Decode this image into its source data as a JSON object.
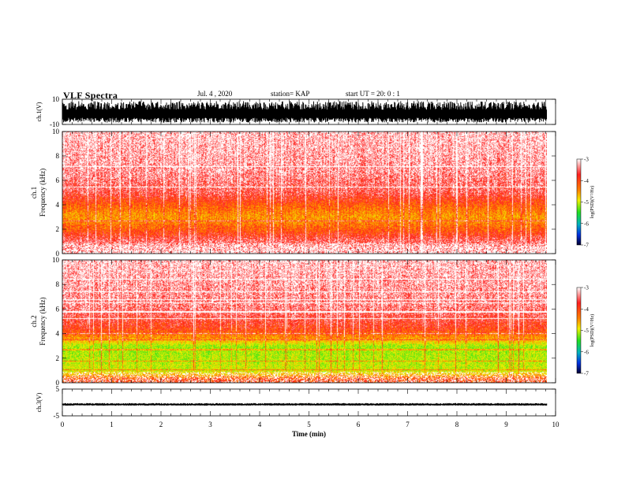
{
  "header": {
    "title": "VLF Spectra",
    "date": "Jul. 4 , 2020",
    "station": "station= KAP",
    "start": "start UT =  20: 0  : 1"
  },
  "colors": {
    "spectrum_high": "#ff1010",
    "spectrum_mid": "#f0f000",
    "spectrum_low": "#10e020",
    "spectrum_min": "#0010e0",
    "trace": "#000000"
  },
  "chart_data": {
    "type": "heatmap",
    "xlabel": "Time (min)",
    "xlim": [
      0,
      10
    ],
    "x_ticks": [
      "0",
      "1",
      "2",
      "3",
      "4",
      "5",
      "6",
      "7",
      "8",
      "9",
      "10"
    ],
    "data_extent_min": 9.83,
    "panels": [
      {
        "id": "ch1-waveform",
        "type": "line",
        "ylabel": "ch.1(V)",
        "ylim": [
          -10,
          10
        ],
        "y_ticks": [
          "10",
          "-10"
        ],
        "envelope": {
          "mean": 0,
          "amplitude": 8.5
        }
      },
      {
        "id": "ch1-spectrogram",
        "type": "heatmap",
        "ylabel_lines": [
          "ch.1",
          "Frequency (kHz)"
        ],
        "ylim": [
          0,
          10
        ],
        "y_ticks": [
          "0",
          "2",
          "4",
          "6",
          "8",
          "10"
        ],
        "color_scale": {
          "label": "log(PSD)(V²/Hz)",
          "range": [
            -7,
            -3
          ],
          "ticks": [
            "-3",
            "-4",
            "-5",
            "-6",
            "-7"
          ]
        },
        "level_by_frequency_khz": [
          {
            "f": 0.3,
            "log_psd": -3.2
          },
          {
            "f": 1.2,
            "log_psd": -3.4
          },
          {
            "f": 2.0,
            "log_psd": -3.8
          },
          {
            "f": 3.0,
            "log_psd": -4.1
          },
          {
            "f": 4.0,
            "log_psd": -3.8
          },
          {
            "f": 5.0,
            "log_psd": -3.4
          },
          {
            "f": 7.0,
            "log_psd": -3.2
          },
          {
            "f": 10.0,
            "log_psd": -3.1
          }
        ]
      },
      {
        "id": "ch2-spectrogram",
        "type": "heatmap",
        "ylabel_lines": [
          "ch.2",
          "Frequency (kHz)"
        ],
        "ylim": [
          0,
          10
        ],
        "y_ticks": [
          "0",
          "2",
          "4",
          "6",
          "8",
          "10"
        ],
        "color_scale": {
          "label": "log(PSD)(V²/Hz)",
          "range": [
            -7,
            -3
          ],
          "ticks": [
            "-3",
            "-4",
            "-5",
            "-6",
            "-7"
          ]
        },
        "level_by_frequency_khz": [
          {
            "f": 0.3,
            "log_psd": -3.7
          },
          {
            "f": 1.0,
            "log_psd": -4.6
          },
          {
            "f": 2.0,
            "log_psd": -4.7
          },
          {
            "f": 3.0,
            "log_psd": -4.8
          },
          {
            "f": 3.6,
            "log_psd": -4.1
          },
          {
            "f": 4.5,
            "log_psd": -3.6
          },
          {
            "f": 6.0,
            "log_psd": -3.3
          },
          {
            "f": 10.0,
            "log_psd": -3.1
          }
        ]
      },
      {
        "id": "ch3-waveform",
        "type": "line",
        "ylabel": "ch.3(V)",
        "ylim": [
          -5,
          5
        ],
        "y_ticks": [
          "5",
          "-5"
        ],
        "envelope": {
          "mean": -0.7,
          "amplitude": 0.45
        }
      }
    ]
  }
}
